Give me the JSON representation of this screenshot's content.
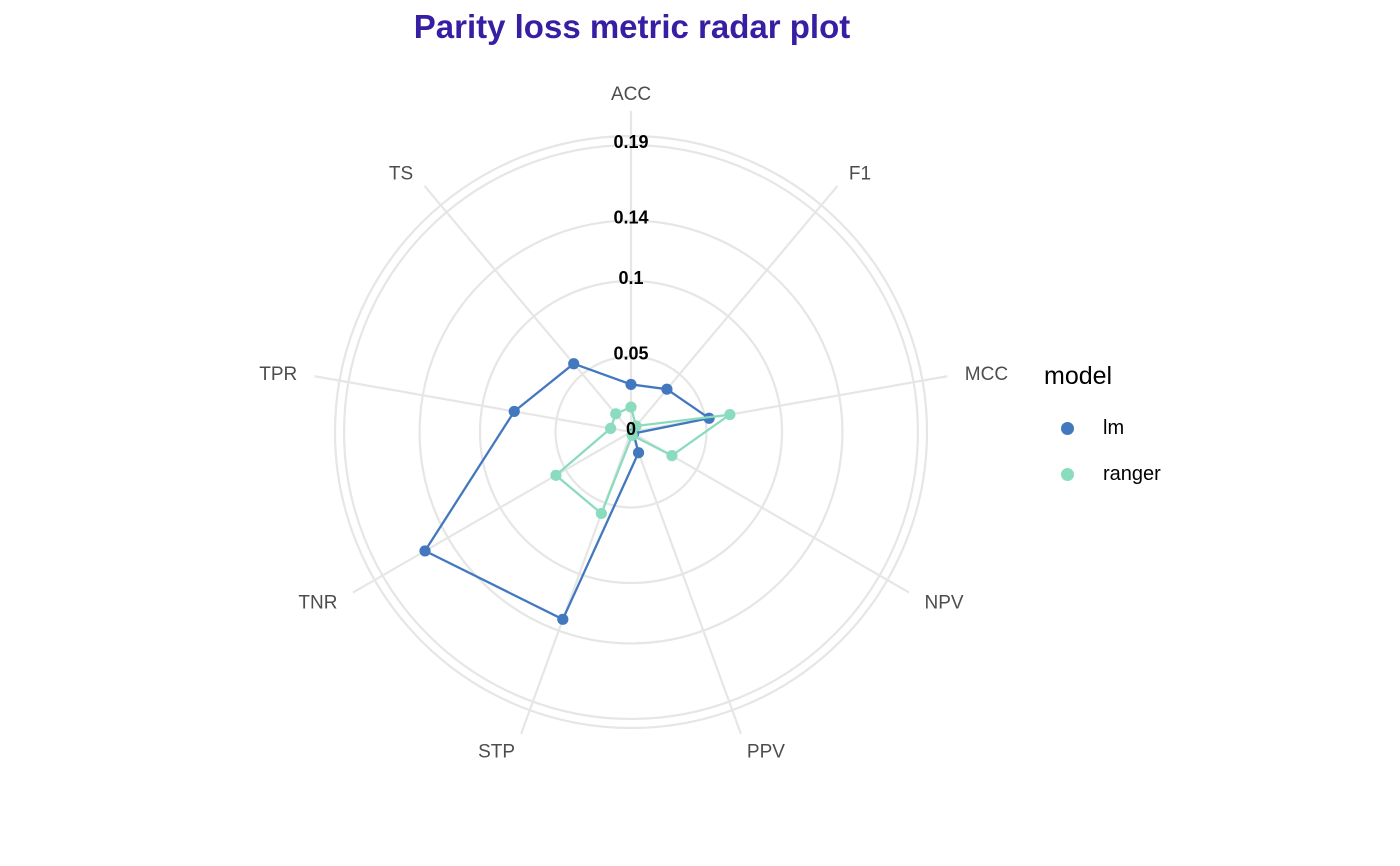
{
  "chart_data": {
    "type": "radar",
    "title": "Parity loss metric radar plot",
    "axes": [
      "ACC",
      "F1",
      "MCC",
      "NPV",
      "PPV",
      "STP",
      "TNR",
      "TPR",
      "TS"
    ],
    "ring_labels": [
      "0",
      "0.05",
      "0.1",
      "0.14",
      "0.19"
    ],
    "rlim": [
      0,
      0.196
    ],
    "grid": true,
    "legend": {
      "title": "model",
      "position": "right"
    },
    "series": [
      {
        "name": "lm",
        "color": "#4378bf",
        "values": [
          0.0315,
          0.037,
          0.0525,
          0.002,
          0.0146,
          0.132,
          0.1575,
          0.0785,
          0.059
        ]
      },
      {
        "name": "ranger",
        "color": "#8bdcbe",
        "values": [
          0.0165,
          0.0052,
          0.0665,
          0.0313,
          0.0023,
          0.0574,
          0.0574,
          0.0137,
          0.0157
        ]
      }
    ]
  }
}
